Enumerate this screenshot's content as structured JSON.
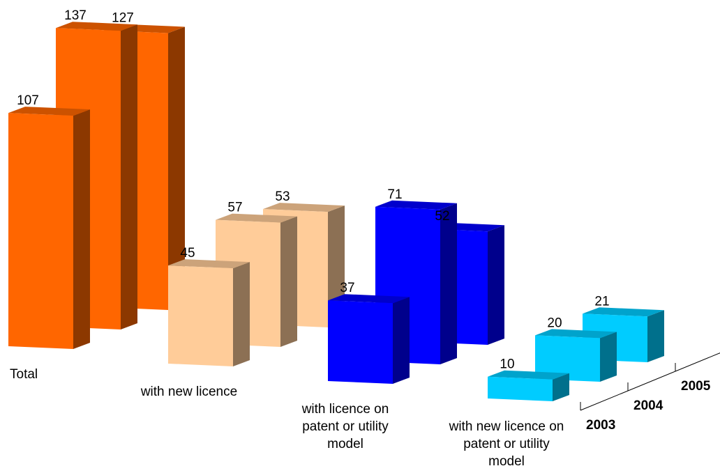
{
  "chart_data": {
    "type": "bar",
    "series_axis": [
      "2003",
      "2004",
      "2005"
    ],
    "categories": [
      {
        "label_lines": [
          "Total"
        ],
        "color": "#ff6600",
        "values": [
          107,
          137,
          127
        ]
      },
      {
        "label_lines": [
          "with new licence"
        ],
        "color": "#ffcc99",
        "values": [
          45,
          57,
          53
        ]
      },
      {
        "label_lines": [
          "with licence on",
          "patent or utility",
          "model"
        ],
        "color": "#0000ff",
        "values": [
          37,
          71,
          52
        ]
      },
      {
        "label_lines": [
          "with new licence on",
          "patent or utility",
          "model"
        ],
        "color": "#00ccff",
        "values": [
          10,
          20,
          21
        ]
      }
    ],
    "labels": {
      "categories": [
        "Total",
        "with new licence",
        "with licence on patent or utility model",
        "with new licence on patent or utility model"
      ],
      "years": [
        "2003",
        "2004",
        "2005"
      ],
      "values_2003": [
        "107",
        "45",
        "37",
        "10"
      ],
      "values_2004": [
        "137",
        "57",
        "71",
        "20"
      ],
      "values_2005": [
        "127",
        "53",
        "52",
        "21"
      ]
    },
    "grid": false,
    "legend": "none"
  }
}
